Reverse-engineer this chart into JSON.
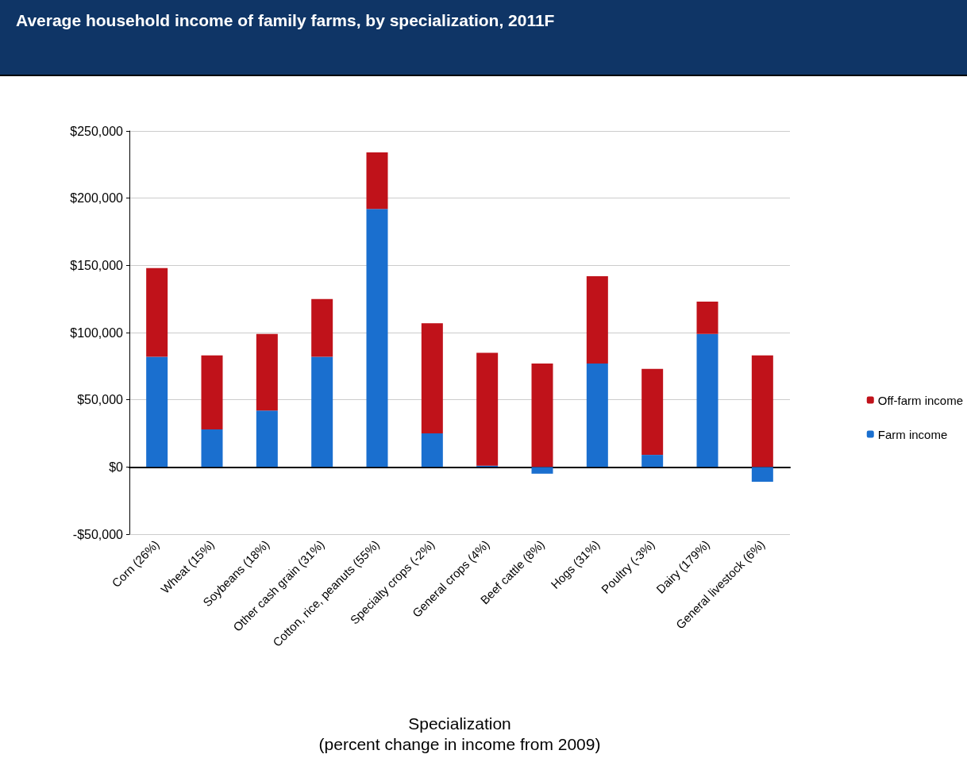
{
  "chart_data": {
    "type": "bar",
    "title": "Average household income of family farms, by specialization, 2011F",
    "xlabel": "Specialization\n(percent change in income from 2009)",
    "categories": [
      "Corn (26%)",
      "Wheat (15%)",
      "Soybeans (18%)",
      "Other cash grain (31%)",
      "Cotton, rice, peanuts (55%)",
      "Specialty crops (-2%)",
      "General crops (4%)",
      "Beef cattle (8%)",
      "Hogs (31%)",
      "Poultry (-3%)",
      "Dairy (179%)",
      "General livestock (6%)"
    ],
    "stacked": true,
    "series": [
      {
        "name": "Farm income",
        "color": "#1a6fcf",
        "values": [
          82000,
          28000,
          42000,
          82000,
          192000,
          25000,
          1000,
          -5000,
          77000,
          9000,
          99000,
          -11000
        ]
      },
      {
        "name": "Off-farm income",
        "color": "#c0121a",
        "values": [
          66000,
          55000,
          57000,
          43000,
          42000,
          82000,
          84000,
          77000,
          65000,
          64000,
          24000,
          83000
        ]
      }
    ],
    "ylim": [
      -50000,
      250000
    ],
    "yticks": [
      {
        "value": -50000,
        "label": "-$50,000"
      },
      {
        "value": 0,
        "label": "$0"
      },
      {
        "value": 50000,
        "label": "$50,000"
      },
      {
        "value": 100000,
        "label": "$100,000"
      },
      {
        "value": 150000,
        "label": "$150,000"
      },
      {
        "value": 200000,
        "label": "$200,000"
      },
      {
        "value": 250000,
        "label": "$250,000"
      }
    ],
    "grid": "y",
    "legend": "right"
  }
}
